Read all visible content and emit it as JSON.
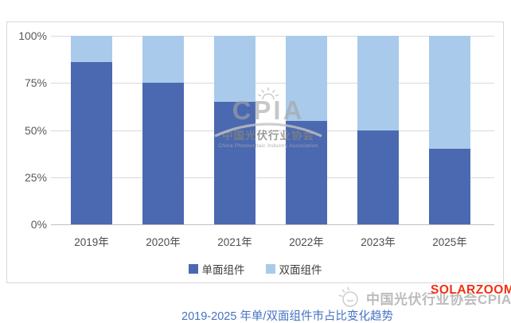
{
  "colors": {
    "single_sided": "#4a69b0",
    "bifacial": "#a9caeb",
    "gridline": "#d9d9d9",
    "axis_line": "#bfbfbf",
    "axis_label": "#595959",
    "caption_blue": "#4472c4",
    "watermark_gray": "#bcbcbc",
    "solarzoom_red": "#f43014"
  },
  "chart_data": {
    "type": "bar",
    "stacked": true,
    "title": "2019-2025 年单/双面组件市占比变化趋势",
    "xlabel": "",
    "ylabel": "",
    "ylim": [
      0,
      100
    ],
    "grid": true,
    "legend_position": "bottom",
    "categories": [
      "2019年",
      "2020年",
      "2021年",
      "2022年",
      "2023年",
      "2025年"
    ],
    "series": [
      {
        "name": "单面组件",
        "color": "#4a69b0",
        "values": [
          86,
          75,
          65,
          55,
          50,
          40
        ]
      },
      {
        "name": "双面组件",
        "color": "#a9caeb",
        "values": [
          14,
          25,
          35,
          45,
          50,
          60
        ]
      }
    ],
    "y_ticks": [
      {
        "label": "100%",
        "value": 100
      },
      {
        "label": "75%",
        "value": 75
      },
      {
        "label": "50%",
        "value": 50
      },
      {
        "label": "25%",
        "value": 25
      },
      {
        "label": "0%",
        "value": 0
      }
    ]
  },
  "caption": "2019-2025 年单/双面组件市占比变化趋势",
  "watermark_center": {
    "brand": "CPIA",
    "name_cn": "中国光伏行业协会",
    "name_en": "China Photovoltaic Industry Association"
  },
  "watermark_bottom": {
    "text": "中国光伏行业协会CPIA",
    "overlay": "SOLARZOOM"
  }
}
